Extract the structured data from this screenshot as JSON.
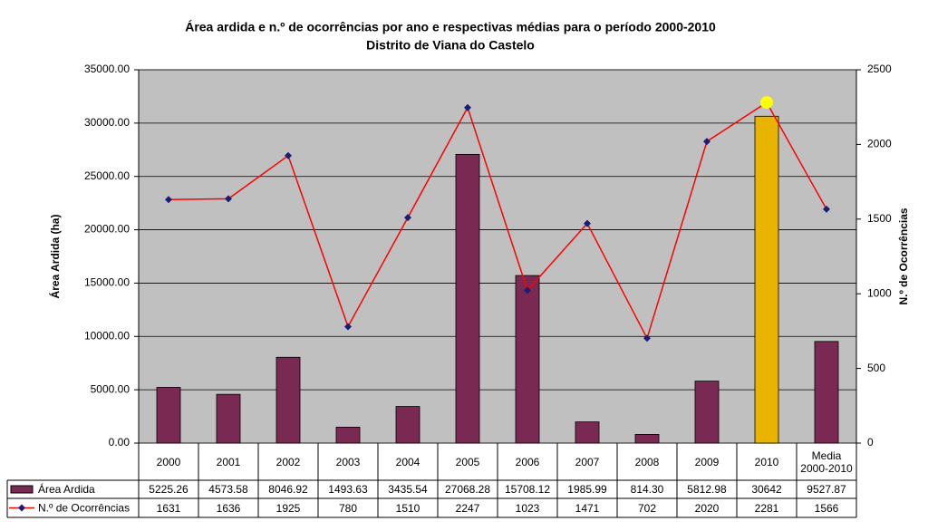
{
  "chart_data": {
    "type": "bar-line",
    "title": "Área ardida e n.º de ocorrências por ano e respectivas médias para o período 2000-2010",
    "subtitle": "Distrito de Viana do Castelo",
    "y_label": "Área Ardida (ha)",
    "y2_label": "N.º de Ocorrências",
    "categories": [
      "2000",
      "2001",
      "2002",
      "2003",
      "2004",
      "2005",
      "2006",
      "2007",
      "2008",
      "2009",
      "2010",
      "Media 2000-2010"
    ],
    "series": [
      {
        "name": "Área Ardida",
        "type": "bar",
        "color": "#7a2a52",
        "colors": [
          "#7a2a52",
          "#7a2a52",
          "#7a2a52",
          "#7a2a52",
          "#7a2a52",
          "#7a2a52",
          "#7a2a52",
          "#7a2a52",
          "#7a2a52",
          "#7a2a52",
          "#e8b400",
          "#7a2a52"
        ],
        "values": [
          5225.26,
          4573.58,
          8046.92,
          1493.63,
          3435.54,
          27068.28,
          15708.12,
          1985.99,
          814.3,
          5812.98,
          30642,
          9527.87
        ],
        "value_labels": [
          "5225.26",
          "4573.58",
          "8046.92",
          "1493.63",
          "3435.54",
          "27068.28",
          "15708.12",
          "1985.99",
          "814.30",
          "5812.98",
          "30642",
          "9527.87"
        ]
      },
      {
        "name": "N.º de Ocorrências",
        "type": "line",
        "color": "#ff0000",
        "axis": "y2",
        "marker_colors": [
          "#1c1c78",
          "#1c1c78",
          "#1c1c78",
          "#1c1c78",
          "#1c1c78",
          "#1c1c78",
          "#1c1c78",
          "#1c1c78",
          "#1c1c78",
          "#1c1c78",
          "#ffff00",
          "#1c1c78"
        ],
        "values": [
          1631,
          1636,
          1925,
          780,
          1510,
          2247,
          1023,
          1471,
          702,
          2020,
          2281,
          1566
        ]
      }
    ],
    "ylim": [
      0,
      35000
    ],
    "yticks": [
      {
        "value": 0,
        "label": "0.00"
      },
      {
        "value": 5000,
        "label": "5000.00"
      },
      {
        "value": 10000,
        "label": "10000.00"
      },
      {
        "value": 15000,
        "label": "15000.00"
      },
      {
        "value": 20000,
        "label": "20000.00"
      },
      {
        "value": 25000,
        "label": "25000.00"
      },
      {
        "value": 30000,
        "label": "30000.00"
      },
      {
        "value": 35000,
        "label": "35000.00"
      }
    ],
    "y2lim": [
      0,
      2500
    ],
    "y2ticks": [
      0,
      500,
      1000,
      1500,
      2000,
      2500
    ],
    "grid": true,
    "plot_background": "#c0c0c0"
  }
}
